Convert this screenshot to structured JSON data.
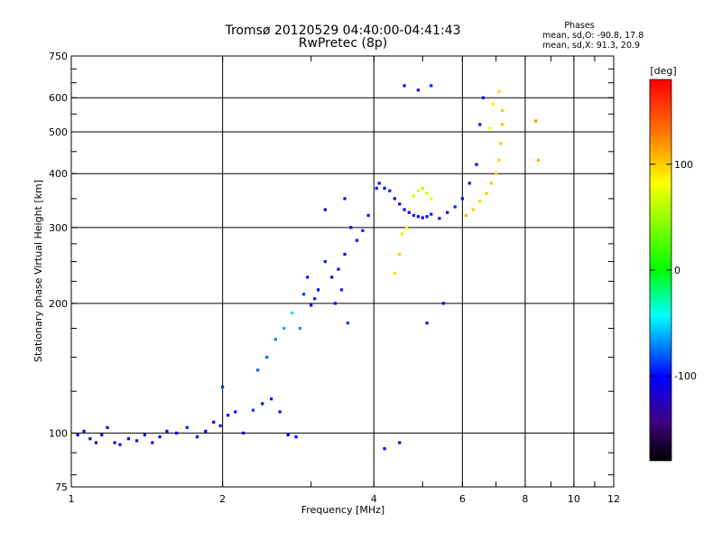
{
  "chart_data": {
    "type": "scatter",
    "title": "Tromsø 20120529 04:40:00-04:41:43",
    "subtitle": "RwPretec (8p)",
    "xlabel": "Frequency [MHz]",
    "ylabel": "Stationary phase Virtual Height [km]",
    "xscale": "log",
    "yscale": "log",
    "xlim": [
      1,
      12
    ],
    "ylim": [
      75,
      750
    ],
    "x_ticks": [
      "1",
      "2",
      "4",
      "6",
      "8",
      "10",
      "12"
    ],
    "y_ticks": [
      "75",
      "100",
      "200",
      "300",
      "400",
      "500",
      "600",
      "750"
    ],
    "grid": true,
    "phases": {
      "heading": "Phases",
      "line_o": "mean, sd,O: -90.8, 17.8",
      "line_x": "mean, sd,X:  91.3, 20.9"
    },
    "colorbar": {
      "label": "[deg]",
      "ticks": [
        "100",
        "0",
        "-100"
      ],
      "range": [
        -180,
        180
      ],
      "colormap": "rainbow"
    },
    "series": [
      {
        "points": [
          [
            1.03,
            99,
            -110
          ],
          [
            1.06,
            101,
            -105
          ],
          [
            1.09,
            97,
            -100
          ],
          [
            1.12,
            95,
            -115
          ],
          [
            1.15,
            99,
            -95
          ],
          [
            1.18,
            103,
            -120
          ],
          [
            1.22,
            95,
            -110
          ],
          [
            1.25,
            94,
            -100
          ],
          [
            1.3,
            97,
            -105
          ],
          [
            1.35,
            96,
            -112
          ],
          [
            1.4,
            99,
            -98
          ],
          [
            1.45,
            95,
            -115
          ],
          [
            1.5,
            98,
            -105
          ],
          [
            1.55,
            101,
            -100
          ],
          [
            1.62,
            100,
            -110
          ],
          [
            1.7,
            103,
            -95
          ],
          [
            1.78,
            98,
            -105
          ],
          [
            1.85,
            101,
            -100
          ],
          [
            1.92,
            106,
            -110
          ],
          [
            1.98,
            104,
            -95
          ],
          [
            2.0,
            128,
            -90
          ],
          [
            2.05,
            110,
            -105
          ],
          [
            2.12,
            112,
            -100
          ],
          [
            2.2,
            100,
            -110
          ],
          [
            2.3,
            113,
            -90
          ],
          [
            2.4,
            117,
            -100
          ],
          [
            2.5,
            120,
            -95
          ],
          [
            2.6,
            112,
            -110
          ],
          [
            2.7,
            99,
            -105
          ],
          [
            2.8,
            98,
            -100
          ],
          [
            2.35,
            140,
            -80
          ],
          [
            2.45,
            150,
            -75
          ],
          [
            2.55,
            165,
            -70
          ],
          [
            2.65,
            175,
            -60
          ],
          [
            2.75,
            190,
            -50
          ],
          [
            2.85,
            175,
            -70
          ],
          [
            2.9,
            210,
            -90
          ],
          [
            2.95,
            230,
            -95
          ],
          [
            3.0,
            198,
            -110
          ],
          [
            3.05,
            205,
            -100
          ],
          [
            3.1,
            215,
            -105
          ],
          [
            3.2,
            250,
            -95
          ],
          [
            3.3,
            230,
            -110
          ],
          [
            3.4,
            240,
            -100
          ],
          [
            3.5,
            260,
            -105
          ],
          [
            3.6,
            300,
            -110
          ],
          [
            3.7,
            280,
            -100
          ],
          [
            3.8,
            295,
            -95
          ],
          [
            3.9,
            320,
            -105
          ],
          [
            3.5,
            350,
            -100
          ],
          [
            3.2,
            330,
            -110
          ],
          [
            3.35,
            200,
            -100
          ],
          [
            3.45,
            215,
            -95
          ],
          [
            3.55,
            180,
            -90
          ],
          [
            4.05,
            370,
            -110
          ],
          [
            4.1,
            380,
            -100
          ],
          [
            4.2,
            370,
            -105
          ],
          [
            4.3,
            365,
            -95
          ],
          [
            4.4,
            350,
            -100
          ],
          [
            4.5,
            340,
            -105
          ],
          [
            4.6,
            330,
            -110
          ],
          [
            4.7,
            325,
            -100
          ],
          [
            4.8,
            320,
            -95
          ],
          [
            4.9,
            318,
            -105
          ],
          [
            5.0,
            316,
            -100
          ],
          [
            5.1,
            318,
            -110
          ],
          [
            5.2,
            322,
            -95
          ],
          [
            5.4,
            315,
            -100
          ],
          [
            5.6,
            325,
            -105
          ],
          [
            5.8,
            335,
            -95
          ],
          [
            6.0,
            350,
            -100
          ],
          [
            6.2,
            380,
            -110
          ],
          [
            6.4,
            420,
            -105
          ],
          [
            6.5,
            520,
            -100
          ],
          [
            6.6,
            600,
            -110
          ],
          [
            4.4,
            235,
            95
          ],
          [
            4.5,
            260,
            100
          ],
          [
            4.55,
            290,
            90
          ],
          [
            4.65,
            300,
            85
          ],
          [
            4.8,
            355,
            70
          ],
          [
            4.9,
            365,
            65
          ],
          [
            5.0,
            370,
            60
          ],
          [
            5.1,
            360,
            70
          ],
          [
            5.2,
            350,
            75
          ],
          [
            6.1,
            320,
            110
          ],
          [
            6.3,
            330,
            100
          ],
          [
            6.5,
            345,
            95
          ],
          [
            6.7,
            360,
            100
          ],
          [
            6.85,
            380,
            105
          ],
          [
            7.0,
            400,
            100
          ],
          [
            7.1,
            430,
            95
          ],
          [
            7.15,
            470,
            100
          ],
          [
            7.2,
            520,
            105
          ],
          [
            7.2,
            560,
            100
          ],
          [
            7.1,
            620,
            95
          ],
          [
            6.9,
            580,
            90
          ],
          [
            6.8,
            510,
            85
          ],
          [
            4.6,
            640,
            -100
          ],
          [
            4.9,
            625,
            -110
          ],
          [
            5.2,
            640,
            -95
          ],
          [
            8.4,
            530,
            120
          ],
          [
            8.5,
            430,
            110
          ],
          [
            5.1,
            180,
            -105
          ],
          [
            5.5,
            200,
            -120
          ],
          [
            4.5,
            95,
            -110
          ],
          [
            4.2,
            92,
            -105
          ]
        ]
      }
    ]
  }
}
